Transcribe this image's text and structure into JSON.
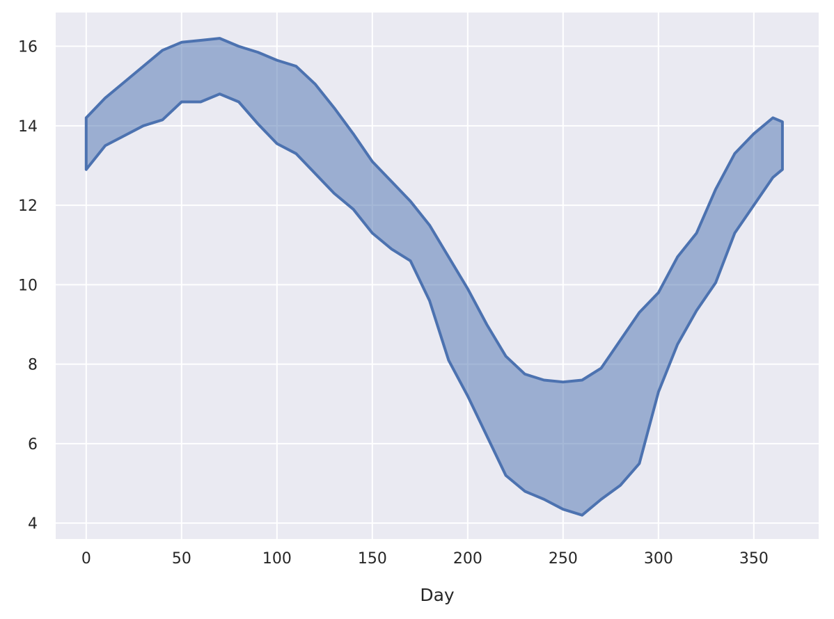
{
  "chart_data": {
    "type": "area",
    "title": "",
    "xlabel": "Day",
    "ylabel": "",
    "xlim": [
      -16,
      384
    ],
    "ylim": [
      3.6,
      16.85
    ],
    "xticks": [
      0,
      50,
      100,
      150,
      200,
      250,
      300,
      350
    ],
    "yticks": [
      4,
      6,
      8,
      10,
      12,
      14,
      16
    ],
    "grid": true,
    "legend": "none",
    "colors": {
      "background": "#eaeaf2",
      "grid": "#ffffff",
      "fill": "#4c72b0",
      "line": "#4c72b0"
    },
    "x": [
      0,
      10,
      20,
      30,
      40,
      50,
      60,
      70,
      80,
      90,
      100,
      110,
      120,
      130,
      140,
      150,
      160,
      170,
      180,
      190,
      200,
      210,
      220,
      230,
      240,
      250,
      260,
      270,
      280,
      290,
      300,
      310,
      320,
      330,
      340,
      350,
      360,
      365
    ],
    "series": [
      {
        "values": [
          14.2,
          14.7,
          15.1,
          15.5,
          15.9,
          16.1,
          16.15,
          16.2,
          16.0,
          15.85,
          15.65,
          15.5,
          15.05,
          14.45,
          13.8,
          13.1,
          12.6,
          12.1,
          11.5,
          10.7,
          9.9,
          9.0,
          8.2,
          7.75,
          7.6,
          7.55,
          7.6,
          7.9,
          8.6,
          9.3,
          9.8,
          10.7,
          11.3,
          12.4,
          13.3,
          13.8,
          14.2,
          14.1
        ]
      },
      {
        "values": [
          12.9,
          13.5,
          13.75,
          14.0,
          14.15,
          14.6,
          14.6,
          14.8,
          14.6,
          14.05,
          13.55,
          13.3,
          12.8,
          12.3,
          11.9,
          11.3,
          10.9,
          10.6,
          9.6,
          8.1,
          7.2,
          6.2,
          5.2,
          4.8,
          4.6,
          4.35,
          4.2,
          4.6,
          4.95,
          5.5,
          7.3,
          8.5,
          9.35,
          10.05,
          11.3,
          12.0,
          12.7,
          12.9
        ]
      }
    ]
  }
}
